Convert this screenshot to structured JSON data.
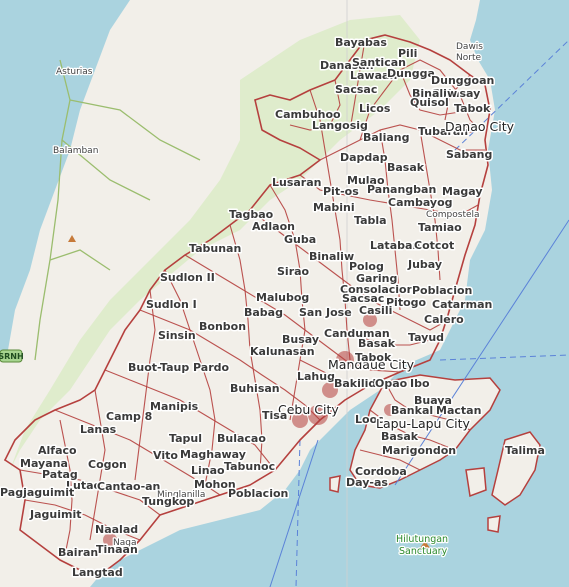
{
  "map": {
    "colors": {
      "water": "#aad3df",
      "land": "#f2efe9",
      "forest": "#d9ebc4",
      "border": "#b5403e",
      "road": "#f7d57a",
      "ferry": "#5b82d8"
    },
    "places": [
      {
        "name": "Bayabas",
        "style": "bold"
      },
      {
        "name": "Dawis Norte",
        "style": "small"
      },
      {
        "name": "Pili",
        "style": "bold"
      },
      {
        "name": "Danasan",
        "style": "bold"
      },
      {
        "name": "Santican",
        "style": "bold"
      },
      {
        "name": "Asturias",
        "style": "small"
      },
      {
        "name": "Lawaan",
        "style": "bold"
      },
      {
        "name": "Dungga",
        "style": "bold"
      },
      {
        "name": "Dunggoan",
        "style": "bold"
      },
      {
        "name": "Guinsay",
        "style": "bold"
      },
      {
        "name": "Sacsac",
        "style": "bold"
      },
      {
        "name": "Binaliw",
        "style": "bold"
      },
      {
        "name": "Quisol",
        "style": "bold"
      },
      {
        "name": "Licos",
        "style": "bold"
      },
      {
        "name": "Tabok",
        "style": "bold"
      },
      {
        "name": "Cambuhoo",
        "style": "bold"
      },
      {
        "name": "Langosig",
        "style": "bold"
      },
      {
        "name": "Tubaran",
        "style": "bold"
      },
      {
        "name": "Danao City",
        "style": "city"
      },
      {
        "name": "Baliang",
        "style": "bold"
      },
      {
        "name": "Balamban",
        "style": "small"
      },
      {
        "name": "Dapdap",
        "style": "bold"
      },
      {
        "name": "Sabang",
        "style": "bold"
      },
      {
        "name": "Basak",
        "style": "bold"
      },
      {
        "name": "Lusaran",
        "style": "bold"
      },
      {
        "name": "Mulao",
        "style": "bold"
      },
      {
        "name": "Pit-os",
        "style": "bold"
      },
      {
        "name": "Panangban",
        "style": "bold"
      },
      {
        "name": "Magay",
        "style": "bold"
      },
      {
        "name": "Mabini",
        "style": "bold"
      },
      {
        "name": "Cambayog",
        "style": "bold"
      },
      {
        "name": "Compostela",
        "style": "small"
      },
      {
        "name": "Tagbao",
        "style": "bold"
      },
      {
        "name": "Tabla",
        "style": "bold"
      },
      {
        "name": "Adlaon",
        "style": "bold"
      },
      {
        "name": "Tamiao",
        "style": "bold"
      },
      {
        "name": "Guba",
        "style": "bold"
      },
      {
        "name": "Lataban",
        "style": "bold"
      },
      {
        "name": "Cotcot",
        "style": "bold"
      },
      {
        "name": "Tabunan",
        "style": "bold"
      },
      {
        "name": "Binaliw",
        "style": "bold"
      },
      {
        "name": "Jubay",
        "style": "bold"
      },
      {
        "name": "Polog",
        "style": "bold"
      },
      {
        "name": "Sirao",
        "style": "bold"
      },
      {
        "name": "Sudlon II",
        "style": "bold"
      },
      {
        "name": "Garing",
        "style": "bold"
      },
      {
        "name": "Consolacion",
        "style": "bold"
      },
      {
        "name": "Poblacion",
        "style": "bold"
      },
      {
        "name": "Sacsac",
        "style": "bold"
      },
      {
        "name": "Pitogo",
        "style": "bold"
      },
      {
        "name": "Catarman",
        "style": "bold"
      },
      {
        "name": "Malubog",
        "style": "bold"
      },
      {
        "name": "Babag",
        "style": "bold"
      },
      {
        "name": "Sudlon I",
        "style": "bold"
      },
      {
        "name": "Casili",
        "style": "bold"
      },
      {
        "name": "San Jose",
        "style": "bold"
      },
      {
        "name": "Calero",
        "style": "bold"
      },
      {
        "name": "Bonbon",
        "style": "bold"
      },
      {
        "name": "Sinsin",
        "style": "bold"
      },
      {
        "name": "Canduman",
        "style": "bold"
      },
      {
        "name": "Tayud",
        "style": "bold"
      },
      {
        "name": "Busay",
        "style": "bold"
      },
      {
        "name": "Basak",
        "style": "bold"
      },
      {
        "name": "Kalunasan",
        "style": "bold"
      },
      {
        "name": "Buot-Taup Pardo",
        "style": "bold"
      },
      {
        "name": "Mandaue City",
        "style": "city"
      },
      {
        "name": "Tabok",
        "style": "bold"
      },
      {
        "name": "Lahug",
        "style": "bold"
      },
      {
        "name": "Ibo",
        "style": "bold"
      },
      {
        "name": "Buhisan",
        "style": "bold"
      },
      {
        "name": "Bakilid",
        "style": "bold"
      },
      {
        "name": "Opao",
        "style": "bold"
      },
      {
        "name": "Buaya",
        "style": "bold"
      },
      {
        "name": "Manipis",
        "style": "bold"
      },
      {
        "name": "Bankal",
        "style": "bold"
      },
      {
        "name": "Mactan",
        "style": "bold"
      },
      {
        "name": "Cebu City",
        "style": "city"
      },
      {
        "name": "Tisa",
        "style": "bold"
      },
      {
        "name": "Camp 8",
        "style": "bold"
      },
      {
        "name": "Looc",
        "style": "bold"
      },
      {
        "name": "Lapu-Lapu City",
        "style": "city"
      },
      {
        "name": "Basak",
        "style": "bold"
      },
      {
        "name": "Lanas",
        "style": "bold"
      },
      {
        "name": "Tapul",
        "style": "bold"
      },
      {
        "name": "Bulacao",
        "style": "bold"
      },
      {
        "name": "Alfaco",
        "style": "bold"
      },
      {
        "name": "Marigondon",
        "style": "bold"
      },
      {
        "name": "Talima",
        "style": "bold"
      },
      {
        "name": "Vito",
        "style": "bold"
      },
      {
        "name": "Maghaway",
        "style": "bold"
      },
      {
        "name": "Mayana",
        "style": "bold"
      },
      {
        "name": "Cogon",
        "style": "bold"
      },
      {
        "name": "Patag",
        "style": "bold"
      },
      {
        "name": "Linao",
        "style": "bold"
      },
      {
        "name": "Tabunoc",
        "style": "bold"
      },
      {
        "name": "Cordoba",
        "style": "bold"
      },
      {
        "name": "Lutac",
        "style": "bold"
      },
      {
        "name": "Cantao-an",
        "style": "bold"
      },
      {
        "name": "Pagjaguimit",
        "style": "bold"
      },
      {
        "name": "Mohon",
        "style": "bold"
      },
      {
        "name": "Day-as",
        "style": "bold"
      },
      {
        "name": "Poblacion",
        "style": "bold"
      },
      {
        "name": "Minglanilla",
        "style": "small"
      },
      {
        "name": "Tungkop",
        "style": "bold"
      },
      {
        "name": "Jaguimit",
        "style": "bold"
      },
      {
        "name": "Naalad",
        "style": "bold"
      },
      {
        "name": "Naga",
        "style": "small"
      },
      {
        "name": "Bairan",
        "style": "bold"
      },
      {
        "name": "Tinaan",
        "style": "bold"
      },
      {
        "name": "Langtad",
        "style": "bold"
      },
      {
        "name": "Hilutungan Sanctuary",
        "style": "park"
      }
    ]
  }
}
